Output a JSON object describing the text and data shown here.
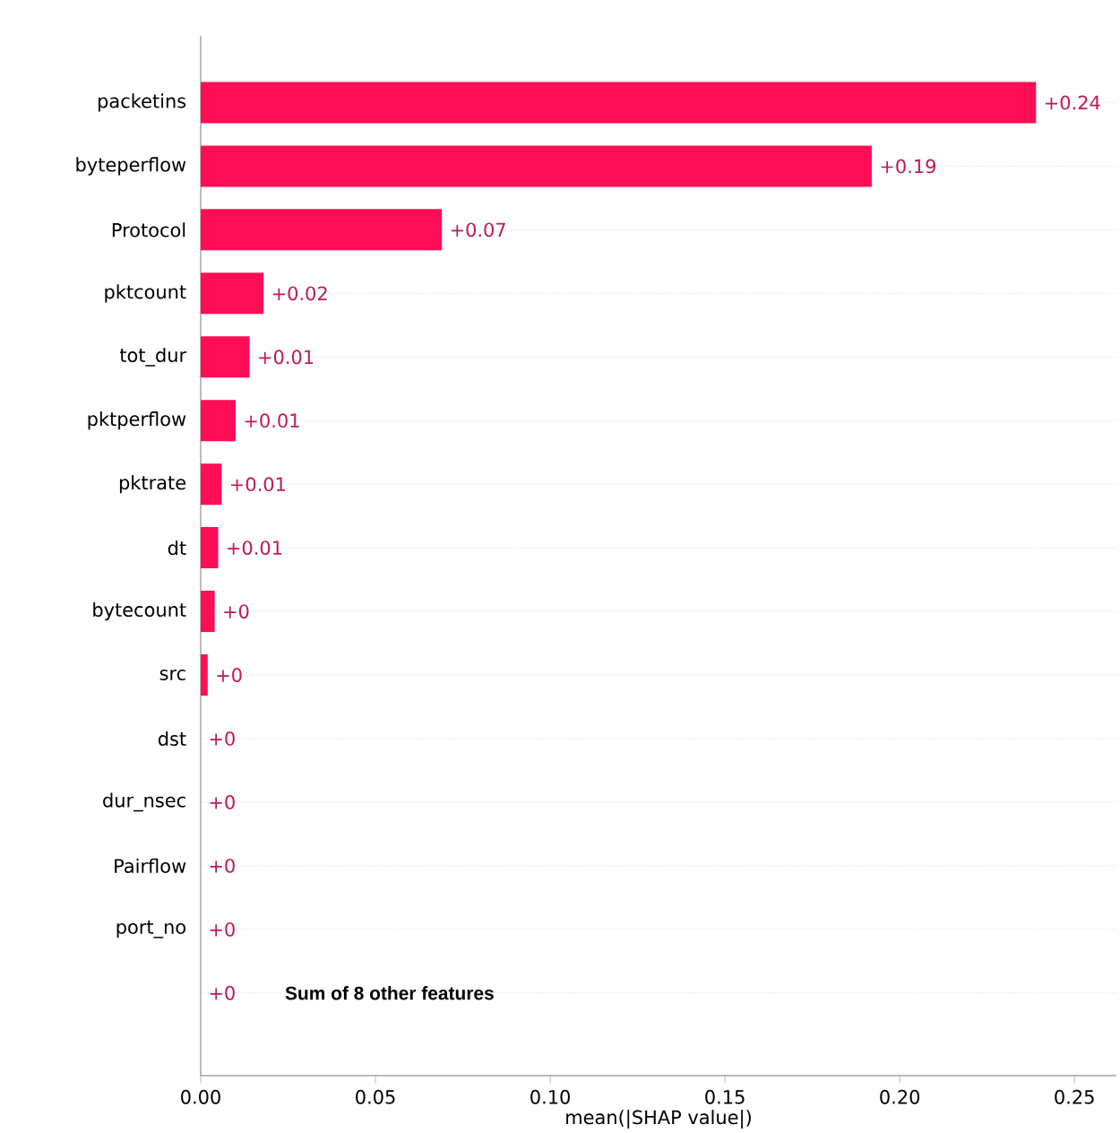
{
  "chart_data": {
    "type": "bar",
    "orientation": "horizontal",
    "xlabel": "mean(|SHAP value|)",
    "categories": [
      "packetins",
      "byteperflow",
      "Protocol",
      "pktcount",
      "tot_dur",
      "pktperflow",
      "pktrate",
      "dt",
      "bytecount",
      "src",
      "dst",
      "dur_nsec",
      "Pairflow",
      "port_no",
      null
    ],
    "values": [
      0.239,
      0.192,
      0.069,
      0.018,
      0.014,
      0.01,
      0.006,
      0.005,
      0.004,
      0.002,
      0,
      0,
      0,
      0,
      0
    ],
    "value_labels": [
      "+0.24",
      "+0.19",
      "+0.07",
      "+0.02",
      "+0.01",
      "+0.01",
      "+0.01",
      "+0.01",
      "+0",
      "+0",
      "+0",
      "+0",
      "+0",
      "+0",
      "+0"
    ],
    "color": "#ff0d57",
    "xlim": [
      0,
      0.262
    ],
    "xticks": [
      {
        "value": 0,
        "label": "0.00"
      },
      {
        "value": 0.05,
        "label": "0.05"
      },
      {
        "value": 0.1,
        "label": "0.10"
      },
      {
        "value": 0.15,
        "label": "0.15"
      },
      {
        "value": 0.2,
        "label": "0.20"
      },
      {
        "value": 0.25,
        "label": "0.25"
      }
    ],
    "grid": "y",
    "annotations": [
      "Sum of 8 other features"
    ]
  }
}
